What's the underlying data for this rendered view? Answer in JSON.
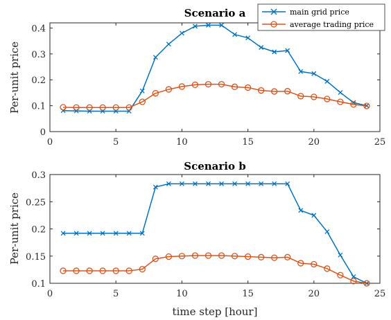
{
  "chart_data": [
    {
      "type": "line",
      "title": "Scenario a",
      "xlabel": "",
      "ylabel": "Per-unit price",
      "xlim": [
        0,
        25
      ],
      "ylim": [
        0,
        0.42
      ],
      "xticks": [
        "0",
        "5",
        "10",
        "15",
        "20",
        "25"
      ],
      "yticks": [
        "0",
        "0.1",
        "0.2",
        "0.3",
        "0.4"
      ],
      "grid": false,
      "legend": "top-right",
      "x": [
        1,
        2,
        3,
        4,
        5,
        6,
        7,
        8,
        9,
        10,
        11,
        12,
        13,
        14,
        15,
        16,
        17,
        18,
        19,
        20,
        21,
        22,
        23,
        24
      ],
      "series": [
        {
          "name": "main grid price",
          "marker": "x",
          "color": "#0072BD",
          "values": [
            0.081,
            0.08,
            0.079,
            0.079,
            0.079,
            0.079,
            0.157,
            0.287,
            0.338,
            0.38,
            0.407,
            0.411,
            0.411,
            0.375,
            0.362,
            0.325,
            0.308,
            0.313,
            0.232,
            0.224,
            0.194,
            0.151,
            0.112,
            0.1
          ]
        },
        {
          "name": "average trading price",
          "marker": "o",
          "color": "#D95319",
          "values": [
            0.094,
            0.093,
            0.093,
            0.093,
            0.093,
            0.093,
            0.115,
            0.148,
            0.163,
            0.174,
            0.181,
            0.183,
            0.183,
            0.173,
            0.17,
            0.159,
            0.155,
            0.156,
            0.137,
            0.134,
            0.126,
            0.115,
            0.105,
            0.099
          ]
        }
      ]
    },
    {
      "type": "line",
      "title": "Scenario b",
      "xlabel": "time step [hour]",
      "ylabel": "Per-unit price",
      "xlim": [
        0,
        25
      ],
      "ylim": [
        0.1,
        0.3
      ],
      "xticks": [
        "0",
        "5",
        "10",
        "15",
        "20",
        "25"
      ],
      "yticks": [
        "0.1",
        "0.15",
        "0.2",
        "0.25",
        "0.3"
      ],
      "grid": false,
      "x": [
        1,
        2,
        3,
        4,
        5,
        6,
        7,
        8,
        9,
        10,
        11,
        12,
        13,
        14,
        15,
        16,
        17,
        18,
        19,
        20,
        21,
        22,
        23,
        24
      ],
      "series": [
        {
          "name": "main grid price",
          "marker": "x",
          "color": "#0072BD",
          "values": [
            0.192,
            0.192,
            0.192,
            0.192,
            0.192,
            0.192,
            0.192,
            0.277,
            0.283,
            0.283,
            0.283,
            0.283,
            0.283,
            0.283,
            0.283,
            0.283,
            0.283,
            0.283,
            0.234,
            0.225,
            0.195,
            0.152,
            0.112,
            0.1
          ]
        },
        {
          "name": "average trading price",
          "marker": "o",
          "color": "#D95319",
          "values": [
            0.123,
            0.123,
            0.123,
            0.123,
            0.123,
            0.123,
            0.126,
            0.145,
            0.149,
            0.15,
            0.151,
            0.151,
            0.151,
            0.15,
            0.149,
            0.148,
            0.147,
            0.148,
            0.137,
            0.135,
            0.127,
            0.115,
            0.104,
            0.1
          ]
        }
      ]
    }
  ]
}
